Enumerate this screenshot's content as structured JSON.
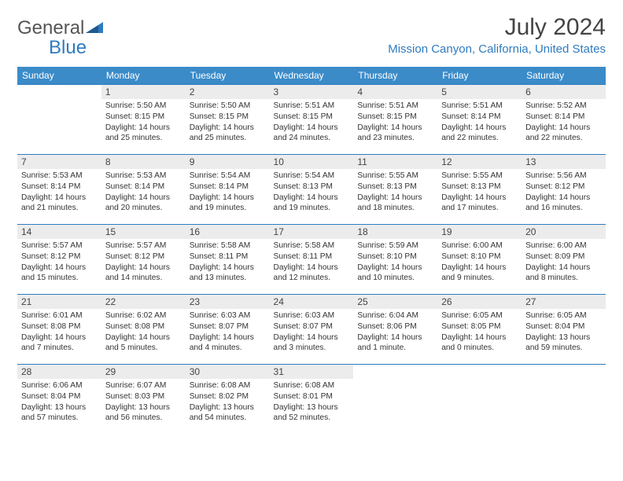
{
  "logo": {
    "word1": "General",
    "word2": "Blue"
  },
  "title": "July 2024",
  "location": "Mission Canyon, California, United States",
  "colors": {
    "header_bg": "#3b8bc9",
    "header_text": "#ffffff",
    "accent": "#2f7bbf",
    "daynum_bg": "#ececec",
    "text": "#333333"
  },
  "dayNames": [
    "Sunday",
    "Monday",
    "Tuesday",
    "Wednesday",
    "Thursday",
    "Friday",
    "Saturday"
  ],
  "weeks": [
    [
      {
        "n": "",
        "sr": "",
        "ss": "",
        "dl1": "",
        "dl2": ""
      },
      {
        "n": "1",
        "sr": "Sunrise: 5:50 AM",
        "ss": "Sunset: 8:15 PM",
        "dl1": "Daylight: 14 hours",
        "dl2": "and 25 minutes."
      },
      {
        "n": "2",
        "sr": "Sunrise: 5:50 AM",
        "ss": "Sunset: 8:15 PM",
        "dl1": "Daylight: 14 hours",
        "dl2": "and 25 minutes."
      },
      {
        "n": "3",
        "sr": "Sunrise: 5:51 AM",
        "ss": "Sunset: 8:15 PM",
        "dl1": "Daylight: 14 hours",
        "dl2": "and 24 minutes."
      },
      {
        "n": "4",
        "sr": "Sunrise: 5:51 AM",
        "ss": "Sunset: 8:15 PM",
        "dl1": "Daylight: 14 hours",
        "dl2": "and 23 minutes."
      },
      {
        "n": "5",
        "sr": "Sunrise: 5:51 AM",
        "ss": "Sunset: 8:14 PM",
        "dl1": "Daylight: 14 hours",
        "dl2": "and 22 minutes."
      },
      {
        "n": "6",
        "sr": "Sunrise: 5:52 AM",
        "ss": "Sunset: 8:14 PM",
        "dl1": "Daylight: 14 hours",
        "dl2": "and 22 minutes."
      }
    ],
    [
      {
        "n": "7",
        "sr": "Sunrise: 5:53 AM",
        "ss": "Sunset: 8:14 PM",
        "dl1": "Daylight: 14 hours",
        "dl2": "and 21 minutes."
      },
      {
        "n": "8",
        "sr": "Sunrise: 5:53 AM",
        "ss": "Sunset: 8:14 PM",
        "dl1": "Daylight: 14 hours",
        "dl2": "and 20 minutes."
      },
      {
        "n": "9",
        "sr": "Sunrise: 5:54 AM",
        "ss": "Sunset: 8:14 PM",
        "dl1": "Daylight: 14 hours",
        "dl2": "and 19 minutes."
      },
      {
        "n": "10",
        "sr": "Sunrise: 5:54 AM",
        "ss": "Sunset: 8:13 PM",
        "dl1": "Daylight: 14 hours",
        "dl2": "and 19 minutes."
      },
      {
        "n": "11",
        "sr": "Sunrise: 5:55 AM",
        "ss": "Sunset: 8:13 PM",
        "dl1": "Daylight: 14 hours",
        "dl2": "and 18 minutes."
      },
      {
        "n": "12",
        "sr": "Sunrise: 5:55 AM",
        "ss": "Sunset: 8:13 PM",
        "dl1": "Daylight: 14 hours",
        "dl2": "and 17 minutes."
      },
      {
        "n": "13",
        "sr": "Sunrise: 5:56 AM",
        "ss": "Sunset: 8:12 PM",
        "dl1": "Daylight: 14 hours",
        "dl2": "and 16 minutes."
      }
    ],
    [
      {
        "n": "14",
        "sr": "Sunrise: 5:57 AM",
        "ss": "Sunset: 8:12 PM",
        "dl1": "Daylight: 14 hours",
        "dl2": "and 15 minutes."
      },
      {
        "n": "15",
        "sr": "Sunrise: 5:57 AM",
        "ss": "Sunset: 8:12 PM",
        "dl1": "Daylight: 14 hours",
        "dl2": "and 14 minutes."
      },
      {
        "n": "16",
        "sr": "Sunrise: 5:58 AM",
        "ss": "Sunset: 8:11 PM",
        "dl1": "Daylight: 14 hours",
        "dl2": "and 13 minutes."
      },
      {
        "n": "17",
        "sr": "Sunrise: 5:58 AM",
        "ss": "Sunset: 8:11 PM",
        "dl1": "Daylight: 14 hours",
        "dl2": "and 12 minutes."
      },
      {
        "n": "18",
        "sr": "Sunrise: 5:59 AM",
        "ss": "Sunset: 8:10 PM",
        "dl1": "Daylight: 14 hours",
        "dl2": "and 10 minutes."
      },
      {
        "n": "19",
        "sr": "Sunrise: 6:00 AM",
        "ss": "Sunset: 8:10 PM",
        "dl1": "Daylight: 14 hours",
        "dl2": "and 9 minutes."
      },
      {
        "n": "20",
        "sr": "Sunrise: 6:00 AM",
        "ss": "Sunset: 8:09 PM",
        "dl1": "Daylight: 14 hours",
        "dl2": "and 8 minutes."
      }
    ],
    [
      {
        "n": "21",
        "sr": "Sunrise: 6:01 AM",
        "ss": "Sunset: 8:08 PM",
        "dl1": "Daylight: 14 hours",
        "dl2": "and 7 minutes."
      },
      {
        "n": "22",
        "sr": "Sunrise: 6:02 AM",
        "ss": "Sunset: 8:08 PM",
        "dl1": "Daylight: 14 hours",
        "dl2": "and 5 minutes."
      },
      {
        "n": "23",
        "sr": "Sunrise: 6:03 AM",
        "ss": "Sunset: 8:07 PM",
        "dl1": "Daylight: 14 hours",
        "dl2": "and 4 minutes."
      },
      {
        "n": "24",
        "sr": "Sunrise: 6:03 AM",
        "ss": "Sunset: 8:07 PM",
        "dl1": "Daylight: 14 hours",
        "dl2": "and 3 minutes."
      },
      {
        "n": "25",
        "sr": "Sunrise: 6:04 AM",
        "ss": "Sunset: 8:06 PM",
        "dl1": "Daylight: 14 hours",
        "dl2": "and 1 minute."
      },
      {
        "n": "26",
        "sr": "Sunrise: 6:05 AM",
        "ss": "Sunset: 8:05 PM",
        "dl1": "Daylight: 14 hours",
        "dl2": "and 0 minutes."
      },
      {
        "n": "27",
        "sr": "Sunrise: 6:05 AM",
        "ss": "Sunset: 8:04 PM",
        "dl1": "Daylight: 13 hours",
        "dl2": "and 59 minutes."
      }
    ],
    [
      {
        "n": "28",
        "sr": "Sunrise: 6:06 AM",
        "ss": "Sunset: 8:04 PM",
        "dl1": "Daylight: 13 hours",
        "dl2": "and 57 minutes."
      },
      {
        "n": "29",
        "sr": "Sunrise: 6:07 AM",
        "ss": "Sunset: 8:03 PM",
        "dl1": "Daylight: 13 hours",
        "dl2": "and 56 minutes."
      },
      {
        "n": "30",
        "sr": "Sunrise: 6:08 AM",
        "ss": "Sunset: 8:02 PM",
        "dl1": "Daylight: 13 hours",
        "dl2": "and 54 minutes."
      },
      {
        "n": "31",
        "sr": "Sunrise: 6:08 AM",
        "ss": "Sunset: 8:01 PM",
        "dl1": "Daylight: 13 hours",
        "dl2": "and 52 minutes."
      },
      {
        "n": "",
        "sr": "",
        "ss": "",
        "dl1": "",
        "dl2": ""
      },
      {
        "n": "",
        "sr": "",
        "ss": "",
        "dl1": "",
        "dl2": ""
      },
      {
        "n": "",
        "sr": "",
        "ss": "",
        "dl1": "",
        "dl2": ""
      }
    ]
  ]
}
